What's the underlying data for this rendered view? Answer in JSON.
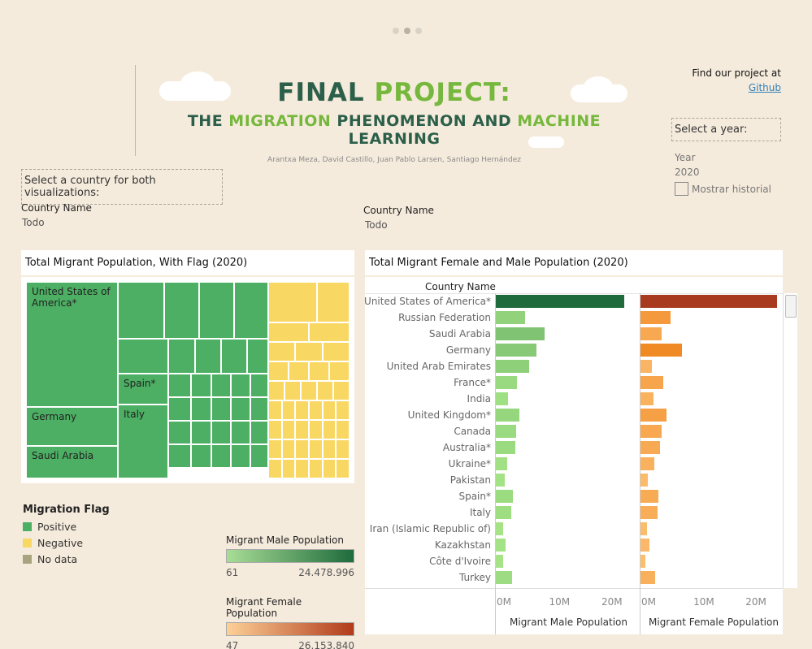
{
  "dots": {
    "count": 3,
    "active_index": 1
  },
  "banner": {
    "title_part1": "FINAL ",
    "title_part2": "PROJECT:",
    "subtitle_w1": "THE ",
    "subtitle_w2": "MIGRATION",
    "subtitle_w3": " PHENOMENON AND ",
    "subtitle_w4": "MACHINE",
    "subtitle_w5": " LEARNING",
    "authors": "Arantxa Meza, David Castillo, Juan Pablo Larsen, Santiago Hernández"
  },
  "find_project": {
    "text": "Find our project at",
    "link": "Github"
  },
  "country_selector": {
    "label": "Select a country for both visualizations:"
  },
  "year_selector": {
    "label": "Select a year:",
    "field_label": "Year",
    "value": "2020",
    "history_label": "Mostrar historial"
  },
  "filter_left": {
    "label": "Country Name",
    "value": "Todo"
  },
  "filter_right": {
    "label": "Country Name",
    "value": "Todo"
  },
  "treemap": {
    "title": "Total Migrant Population, With Flag (2020)",
    "labels": {
      "usa": "United States of America*",
      "germany": "Germany",
      "saudi": "Saudi Arabia",
      "spain": "Spain*",
      "italy": "Italy"
    }
  },
  "legend": {
    "title": "Migration Flag",
    "items": [
      {
        "label": "Positive",
        "color": "#4caf63"
      },
      {
        "label": "Negative",
        "color": "#f8d862"
      },
      {
        "label": "No data",
        "color": "#a9a47f"
      }
    ]
  },
  "male_gradient": {
    "title": "Migrant Male Population",
    "min": "61",
    "max": "24.478.996",
    "color_start": "#a8dd96",
    "color_end": "#1f6b3c"
  },
  "female_gradient": {
    "title": "Migrant Female Population",
    "min": "47",
    "max": "26.153.840",
    "color_start": "#fdd098",
    "color_end": "#b13b1a"
  },
  "chart_data": {
    "type": "bar",
    "title": "Total Migrant Female and Male Population (2020)",
    "category_header": "Country Name",
    "categories": [
      "United States of America*",
      "Russian Federation",
      "Saudi Arabia",
      "Germany",
      "United Arab Emirates",
      "France*",
      "India",
      "United Kingdom*",
      "Canada",
      "Australia*",
      "Ukraine*",
      "Pakistan",
      "Spain*",
      "Italy",
      "Iran (Islamic Republic of)",
      "Kazakhstan",
      "Côte d'Ivoire",
      "Turkey"
    ],
    "series": [
      {
        "name": "Migrant Male Population",
        "values": [
          24.5,
          5.6,
          9.3,
          7.8,
          6.3,
          4.0,
          2.3,
          4.5,
          3.8,
          3.7,
          2.2,
          1.7,
          3.3,
          2.9,
          1.4,
          1.8,
          1.4,
          3.1
        ]
      },
      {
        "name": "Migrant Female Population",
        "values": [
          26.2,
          5.8,
          4.0,
          8.0,
          2.2,
          4.3,
          2.5,
          5.0,
          4.0,
          3.7,
          2.7,
          1.4,
          3.5,
          3.2,
          1.2,
          1.7,
          1.0,
          2.8
        ]
      }
    ],
    "ticks": [
      "0M",
      "10M",
      "20M"
    ],
    "tick_values": [
      0,
      10,
      20
    ],
    "xlim": [
      0,
      26.2
    ],
    "xlabel_male": "Migrant Male Population",
    "xlabel_female": "Migrant Female Population"
  }
}
